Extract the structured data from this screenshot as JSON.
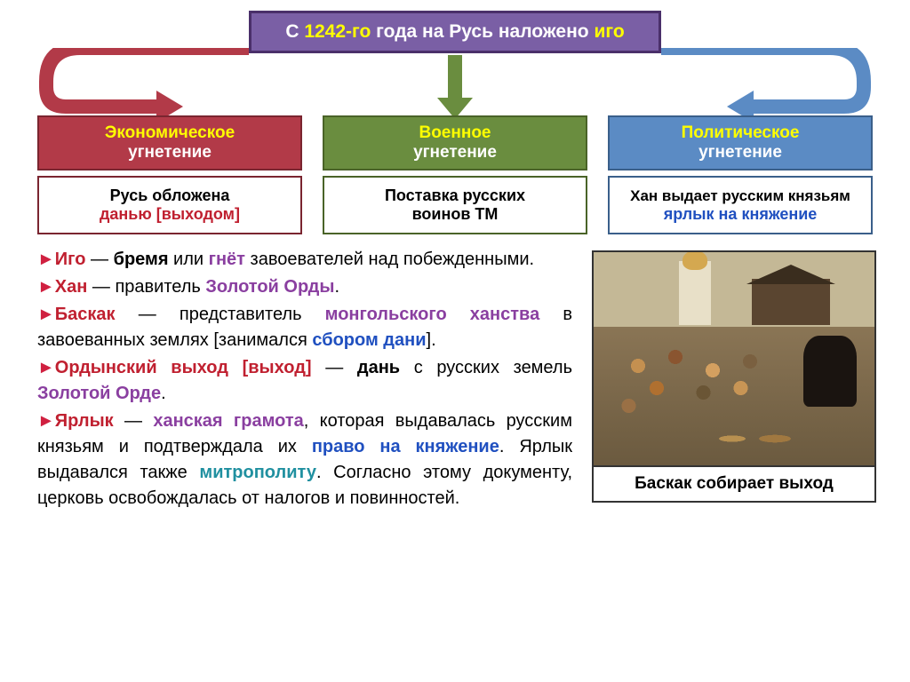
{
  "banner": {
    "t1": "С ",
    "t2": "1242-го",
    "t3": " года на Русь наложено ",
    "t4": "иго"
  },
  "arrows": {
    "c1": "#b23a48",
    "c2": "#6a8d3f",
    "c3": "#5b8bc4"
  },
  "cols": [
    {
      "h1": "Экономическое",
      "h2": "угнетение",
      "b_plain1": "Русь обложена",
      "b_hl": "данью [выходом]",
      "b_plain2": "",
      "hl_color": "#c02030"
    },
    {
      "h1": "Военное",
      "h2": "угнетение",
      "b_plain1": "Поставка русских",
      "b_hl": "",
      "b_plain2": "воинов ТМ",
      "hl_color": "#000000"
    },
    {
      "h1": "Политическое",
      "h2": "угнетение",
      "b_plain1": "Хан выдает русским князьям",
      "b_hl": "ярлык на княжение",
      "b_plain2": "",
      "hl_color": "#2050c0"
    }
  ],
  "defs": [
    {
      "parts": [
        {
          "t": "Иго",
          "c": "#c02030",
          "b": 1
        },
        {
          "t": " — ",
          "c": "#000"
        },
        {
          "t": "бремя",
          "c": "#000",
          "b": 1
        },
        {
          "t": " или ",
          "c": "#000"
        },
        {
          "t": "гнёт",
          "c": "#8a3fa0",
          "b": 1
        },
        {
          "t": " завоевателей над побежденными.",
          "c": "#000"
        }
      ]
    },
    {
      "parts": [
        {
          "t": "Хан",
          "c": "#c02030",
          "b": 1
        },
        {
          "t": " — правитель ",
          "c": "#000"
        },
        {
          "t": "Золотой Орды",
          "c": "#8a3fa0",
          "b": 1
        },
        {
          "t": ".",
          "c": "#000"
        }
      ]
    },
    {
      "parts": [
        {
          "t": "Баскак",
          "c": "#c02030",
          "b": 1
        },
        {
          "t": " — представитель ",
          "c": "#000"
        },
        {
          "t": "монгольского ханства",
          "c": "#8a3fa0",
          "b": 1
        },
        {
          "t": " в завоеванных землях [занимался ",
          "c": "#000"
        },
        {
          "t": "сбором дани",
          "c": "#2050c0",
          "b": 1
        },
        {
          "t": "].",
          "c": "#000"
        }
      ]
    },
    {
      "parts": [
        {
          "t": "Ордынский выход [выход]",
          "c": "#c02030",
          "b": 1
        },
        {
          "t": " — ",
          "c": "#000"
        },
        {
          "t": "дань",
          "c": "#000",
          "b": 1
        },
        {
          "t": " с русских земель ",
          "c": "#000"
        },
        {
          "t": "Золотой Орде",
          "c": "#8a3fa0",
          "b": 1
        },
        {
          "t": ".",
          "c": "#000"
        }
      ]
    },
    {
      "parts": [
        {
          "t": "Ярлык",
          "c": "#c02030",
          "b": 1
        },
        {
          "t": " — ",
          "c": "#000"
        },
        {
          "t": "ханская грамота",
          "c": "#8a3fa0",
          "b": 1
        },
        {
          "t": ", которая выдавалась русским князьям и подтверждала их ",
          "c": "#000"
        },
        {
          "t": "право на княжение",
          "c": "#2050c0",
          "b": 1
        },
        {
          "t": ". Ярлык выдавался также ",
          "c": "#000"
        },
        {
          "t": "митрополиту",
          "c": "#2090a0",
          "b": 1
        },
        {
          "t": ". Согласно этому документу, церковь освобождалась от налогов и повинностей.",
          "c": "#000"
        }
      ]
    }
  ],
  "figure_caption": "Баскак собирает выход"
}
